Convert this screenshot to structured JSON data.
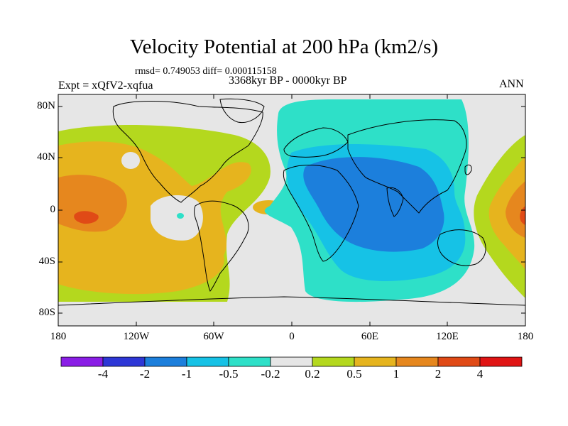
{
  "title": "Velocity Potential at 200 hPa (km2/s)",
  "stats": "rmsd= 0.749053 diff= 0.000115158",
  "expt": "Expt = xQfV2-xqfua",
  "period": "3368kyr BP - 0000kyr BP",
  "season": "ANN",
  "lat_labels": [
    "80N",
    "40N",
    "0",
    "40S",
    "80S"
  ],
  "lon_labels": [
    "180",
    "120W",
    "60W",
    "0",
    "60E",
    "120E",
    "180"
  ],
  "colorbar": {
    "labels": [
      "-4",
      "-2",
      "-1",
      "-0.5",
      "-0.2",
      "0.2",
      "0.5",
      "1",
      "2",
      "4"
    ],
    "colors": [
      "#8a1ee6",
      "#2e37d6",
      "#1c7fdc",
      "#16c2e6",
      "#2ee0c8",
      "#e6e6e6",
      "#b4d81e",
      "#e6b41e",
      "#e6871e",
      "#e04a16",
      "#e01414"
    ]
  }
}
